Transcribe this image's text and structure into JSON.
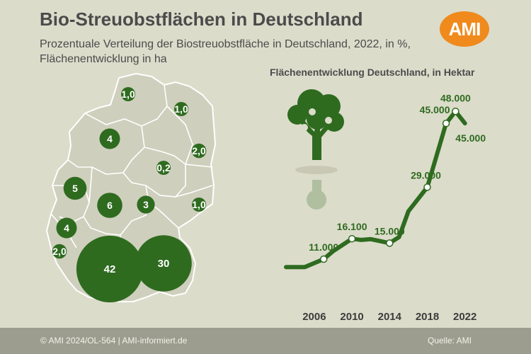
{
  "header": {
    "title": "Bio-Streuobstflächen in Deutschland",
    "subtitle": "Prozentuale Verteilung der Biostreuobstfläche in Deutschland, 2022, in %, Flächenentwicklung in ha",
    "logo_text": "AMI"
  },
  "colors": {
    "accent_green": "#2e6b1f",
    "map_land": "#cfcfbd",
    "map_border": "#ffffff",
    "logo_orange": "#f08a1c",
    "footer_bg": "#9c9c8f"
  },
  "chart_data": [
    {
      "type": "bubble-map",
      "unit": "%",
      "states": [
        {
          "label": "1,0"
        },
        {
          "label": "1,0"
        },
        {
          "label": "4"
        },
        {
          "label": "2,0"
        },
        {
          "label": "0,2"
        },
        {
          "label": "5"
        },
        {
          "label": "6"
        },
        {
          "label": "3"
        },
        {
          "label": "1,0"
        },
        {
          "label": "4"
        },
        {
          "label": "2,0"
        },
        {
          "label": "42"
        },
        {
          "label": "30"
        }
      ]
    },
    {
      "type": "line",
      "title": "Flächenentwicklung Deutschland, in Hektar",
      "x_ticks": [
        "2006",
        "2010",
        "2014",
        "2018",
        "2022"
      ],
      "xlim": [
        2003,
        2023
      ],
      "ylim": [
        0,
        50000
      ],
      "series": [
        {
          "points": [
            {
              "x": 2003,
              "y": 9000
            },
            {
              "x": 2005,
              "y": 9000
            },
            {
              "x": 2007,
              "y": 11000
            },
            {
              "x": 2008,
              "y": 13000
            },
            {
              "x": 2010,
              "y": 16100
            },
            {
              "x": 2011,
              "y": 15800
            },
            {
              "x": 2012,
              "y": 16000
            },
            {
              "x": 2013,
              "y": 15500
            },
            {
              "x": 2014,
              "y": 15000
            },
            {
              "x": 2015,
              "y": 16500
            },
            {
              "x": 2016,
              "y": 23000
            },
            {
              "x": 2017,
              "y": 26000
            },
            {
              "x": 2018,
              "y": 29000
            },
            {
              "x": 2019,
              "y": 37000
            },
            {
              "x": 2020,
              "y": 45000
            },
            {
              "x": 2021,
              "y": 48000
            },
            {
              "x": 2022,
              "y": 45000
            }
          ]
        }
      ],
      "data_labels": [
        {
          "x": 2007,
          "y": 11000,
          "text": "11.000"
        },
        {
          "x": 2010,
          "y": 16100,
          "text": "16.100"
        },
        {
          "x": 2014,
          "y": 15000,
          "text": "15.000"
        },
        {
          "x": 2018,
          "y": 29000,
          "text": "29.000"
        },
        {
          "x": 2020,
          "y": 45000,
          "text": "45.000"
        },
        {
          "x": 2021,
          "y": 48000,
          "text": "48.000"
        },
        {
          "x": 2022,
          "y": 45000,
          "text": "45.000"
        }
      ],
      "grid": false,
      "legend": "none"
    }
  ],
  "footer": {
    "copyright": "© AMI 2024/OL-564 | AMI-informiert.de",
    "source": "Quelle: AMI"
  }
}
